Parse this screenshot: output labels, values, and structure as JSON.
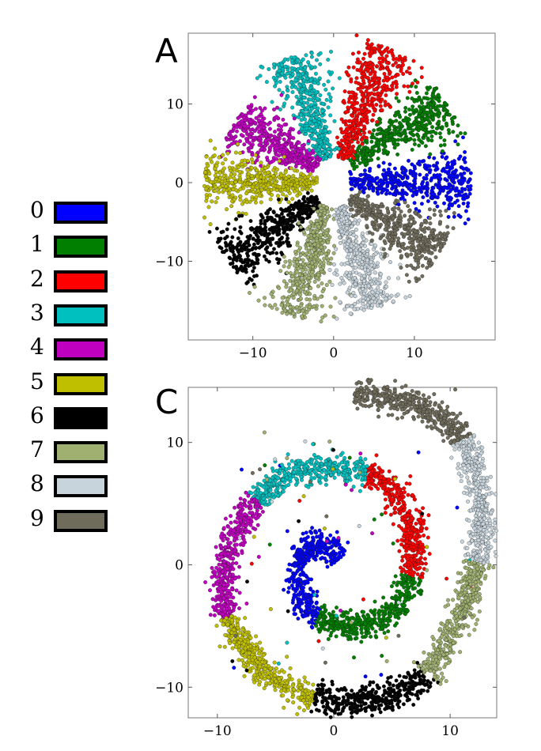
{
  "legend": [
    {
      "label": "0",
      "color": "#0000ff"
    },
    {
      "label": "1",
      "color": "#007f00"
    },
    {
      "label": "2",
      "color": "#ff0000"
    },
    {
      "label": "3",
      "color": "#00bfbf"
    },
    {
      "label": "4",
      "color": "#bf00bf"
    },
    {
      "label": "5",
      "color": "#bfbf00"
    },
    {
      "label": "6",
      "color": "#000000"
    },
    {
      "label": "7",
      "color": "#a0b070"
    },
    {
      "label": "8",
      "color": "#c8d4dc"
    },
    {
      "label": "9",
      "color": "#706c5c"
    }
  ],
  "chart_data": [
    {
      "panel_label": "A",
      "type": "scatter",
      "title": "",
      "xlabel": "",
      "ylabel": "",
      "xlim": [
        -18,
        20
      ],
      "ylim": [
        -20,
        19
      ],
      "xticks": [
        -10,
        0,
        10
      ],
      "yticks": [
        -10,
        0,
        10
      ],
      "grid": false,
      "pattern": "radial clusters (pinwheel)",
      "series": [
        {
          "name": "0",
          "color": "#0000ff",
          "start": [
            2,
            0
          ],
          "end": [
            17,
            0
          ]
        },
        {
          "name": "1",
          "color": "#007f00",
          "start": [
            2,
            2.5
          ],
          "end": [
            14,
            10
          ]
        },
        {
          "name": "2",
          "color": "#ff0000",
          "start": [
            1,
            3
          ],
          "end": [
            7,
            17
          ]
        },
        {
          "name": "3",
          "color": "#00bfbf",
          "start": [
            -1,
            3
          ],
          "end": [
            -5,
            16
          ]
        },
        {
          "name": "4",
          "color": "#bf00bf",
          "start": [
            -2,
            2
          ],
          "end": [
            -12,
            8
          ]
        },
        {
          "name": "5",
          "color": "#bfbf00",
          "start": [
            -2,
            0
          ],
          "end": [
            -16,
            0
          ]
        },
        {
          "name": "6",
          "color": "#000000",
          "start": [
            -2,
            -2
          ],
          "end": [
            -13,
            -10
          ]
        },
        {
          "name": "7",
          "color": "#a0b070",
          "start": [
            -1,
            -3
          ],
          "end": [
            -5,
            -17
          ]
        },
        {
          "name": "8",
          "color": "#c8d4dc",
          "start": [
            1,
            -3
          ],
          "end": [
            5,
            -16
          ]
        },
        {
          "name": "9",
          "color": "#706c5c",
          "start": [
            2,
            -2
          ],
          "end": [
            13,
            -9
          ]
        }
      ]
    },
    {
      "panel_label": "C",
      "type": "scatter",
      "title": "",
      "xlabel": "",
      "ylabel": "",
      "xlim": [
        -12.5,
        14
      ],
      "ylim": [
        -12.5,
        14.5
      ],
      "xticks": [
        -10,
        0,
        10
      ],
      "yticks": [
        -10,
        0,
        10
      ],
      "grid": false,
      "pattern": "spiral arranged by class 0 (center) to 9 (outer end)",
      "spiral_path": [
        [
          0.5,
          0.5
        ],
        [
          -0.8,
          2.0
        ],
        [
          -2.6,
          1.3
        ],
        [
          -3.3,
          -1.5
        ],
        [
          -2.0,
          -4.0
        ],
        [
          0.6,
          -5.0
        ],
        [
          3.6,
          -4.8
        ],
        [
          6.0,
          -3.0
        ],
        [
          6.8,
          0.0
        ],
        [
          6.8,
          3.0
        ],
        [
          5.8,
          5.5
        ],
        [
          3.5,
          7.5
        ],
        [
          0.0,
          8.0
        ],
        [
          -3.8,
          7.5
        ],
        [
          -6.5,
          5.5
        ],
        [
          -8.3,
          3.0
        ],
        [
          -9.3,
          0.0
        ],
        [
          -9.5,
          -3.0
        ],
        [
          -8.5,
          -5.5
        ],
        [
          -6.5,
          -8.5
        ],
        [
          -3.0,
          -10.5
        ],
        [
          1.0,
          -11.3
        ],
        [
          5.0,
          -10.8
        ],
        [
          8.0,
          -9.0
        ],
        [
          10.0,
          -6.0
        ],
        [
          11.5,
          -3.0
        ],
        [
          12.5,
          0.5
        ],
        [
          12.7,
          4.0
        ],
        [
          12.3,
          7.5
        ],
        [
          11.0,
          10.5
        ],
        [
          8.5,
          12.5
        ],
        [
          5.5,
          13.5
        ],
        [
          1.8,
          14.0
        ]
      ],
      "series": [
        {
          "name": "0",
          "color": "#0000ff"
        },
        {
          "name": "1",
          "color": "#007f00"
        },
        {
          "name": "2",
          "color": "#ff0000"
        },
        {
          "name": "3",
          "color": "#00bfbf"
        },
        {
          "name": "4",
          "color": "#bf00bf"
        },
        {
          "name": "5",
          "color": "#bfbf00"
        },
        {
          "name": "6",
          "color": "#000000"
        },
        {
          "name": "7",
          "color": "#a0b070"
        },
        {
          "name": "8",
          "color": "#c8d4dc"
        },
        {
          "name": "9",
          "color": "#706c5c"
        }
      ]
    }
  ]
}
